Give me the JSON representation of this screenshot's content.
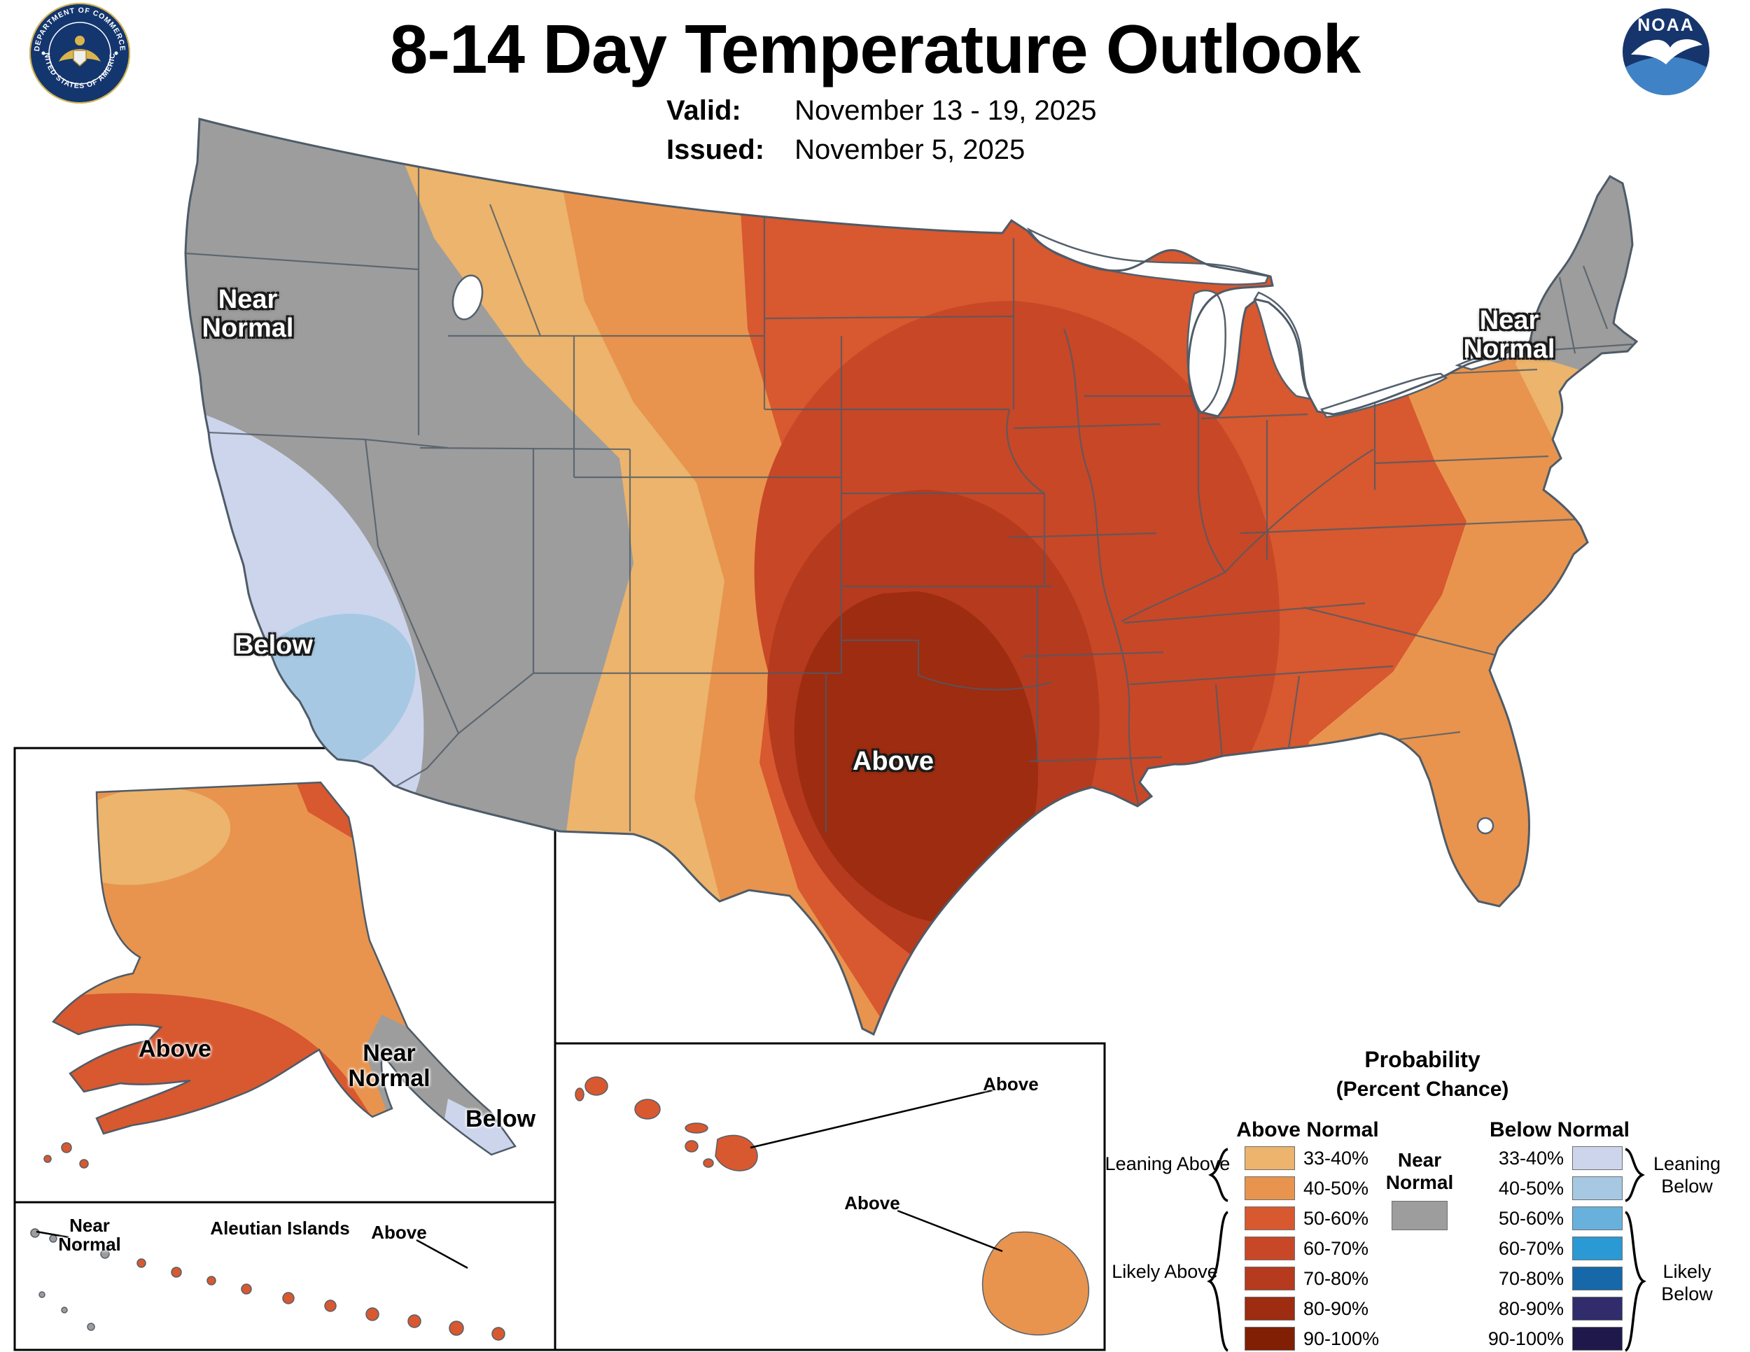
{
  "header": {
    "title": "8-14 Day Temperature Outlook",
    "valid_label": "Valid:",
    "valid_value": "November 13 - 19, 2025",
    "issued_label": "Issued:",
    "issued_value": "November 5, 2025"
  },
  "logos": {
    "noaa": "NOAA",
    "doc_top": "DEPARTMENT OF COMMERCE",
    "doc_bottom": "UNITED STATES OF AMERICA"
  },
  "map_labels": {
    "pnw": "Near Normal",
    "california": "Below",
    "central": "Above",
    "northeast": "Near Normal"
  },
  "alaska_labels": {
    "above": "Above",
    "near_normal": "Near Normal",
    "below": "Below"
  },
  "aleutian_labels": {
    "near_normal": "Near Normal",
    "title": "Aleutian Islands",
    "above": "Above"
  },
  "hawaii_labels": {
    "above_maui": "Above",
    "above_big_island": "Above"
  },
  "legend": {
    "title": "Probability",
    "subtitle": "(Percent Chance)",
    "above_header": "Above Normal",
    "below_header": "Below Normal",
    "near_label": "Near Normal",
    "rows": [
      "33-40%",
      "40-50%",
      "50-60%",
      "60-70%",
      "70-80%",
      "80-90%",
      "90-100%"
    ],
    "groups": {
      "leaning_above": "Leaning Above",
      "likely_above": "Likely Above",
      "leaning_below": "Leaning Below",
      "likely_below": "Likely Below"
    }
  },
  "colors": {
    "above": [
      "#ecb46c",
      "#e8944e",
      "#d8582f",
      "#c84727",
      "#b63a1e",
      "#9e2c10",
      "#801f04"
    ],
    "below": [
      "#ccd5ec",
      "#a6c8e3",
      "#68b1dd",
      "#2b99d4",
      "#1668a9",
      "#312c6c",
      "#1e194a"
    ],
    "near_normal": "#9d9d9d",
    "island_gray": "#9d9d9d",
    "outline": "#4e5b68",
    "lake_fill": "#ffffff"
  }
}
